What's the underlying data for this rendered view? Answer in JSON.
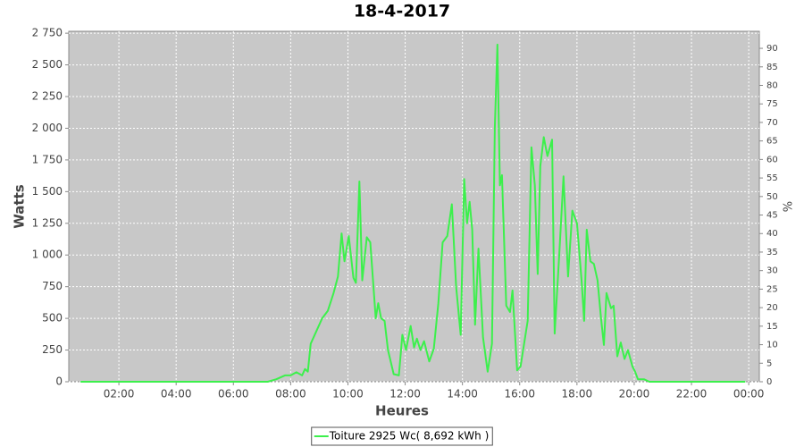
{
  "chart_data": {
    "type": "line",
    "title": "18-4-2017",
    "x_label": "Heures",
    "y_label": "Watts",
    "y2_label": "%",
    "x": [
      0.66,
      7.2,
      7.5,
      7.8,
      8.0,
      8.2,
      8.4,
      8.5,
      8.6,
      8.7,
      8.9,
      9.1,
      9.3,
      9.5,
      9.65,
      9.78,
      9.88,
      10.03,
      10.19,
      10.28,
      10.4,
      10.5,
      10.66,
      10.78,
      10.97,
      11.06,
      11.16,
      11.28,
      11.4,
      11.6,
      11.78,
      11.9,
      12.03,
      12.19,
      12.31,
      12.41,
      12.53,
      12.66,
      12.84,
      13.0,
      13.16,
      13.31,
      13.47,
      13.63,
      13.78,
      13.94,
      14.06,
      14.16,
      14.25,
      14.34,
      14.44,
      14.56,
      14.72,
      14.88,
      15.03,
      15.13,
      15.22,
      15.31,
      15.38,
      15.53,
      15.66,
      15.75,
      15.91,
      16.03,
      16.19,
      16.28,
      16.41,
      16.53,
      16.63,
      16.72,
      16.84,
      16.97,
      17.13,
      17.22,
      17.38,
      17.53,
      17.69,
      17.84,
      18.0,
      18.16,
      18.25,
      18.34,
      18.47,
      18.59,
      18.72,
      18.84,
      18.94,
      19.03,
      19.19,
      19.28,
      19.41,
      19.53,
      19.66,
      19.78,
      19.94,
      20.03,
      20.13,
      20.34,
      20.53,
      23.88
    ],
    "series": [
      {
        "name": "Toiture 2925 Wc( 8,692 kWh )",
        "color": "#3cf04c",
        "values": [
          0,
          0,
          20,
          50,
          50,
          75,
          50,
          100,
          80,
          300,
          400,
          500,
          560,
          700,
          830,
          1170,
          950,
          1150,
          820,
          780,
          1580,
          800,
          1140,
          1100,
          500,
          620,
          500,
          480,
          250,
          60,
          50,
          370,
          250,
          440,
          270,
          340,
          250,
          320,
          160,
          260,
          620,
          1100,
          1150,
          1400,
          750,
          370,
          1600,
          1250,
          1420,
          1200,
          450,
          1050,
          350,
          80,
          300,
          2000,
          2660,
          1550,
          1630,
          600,
          550,
          720,
          90,
          120,
          350,
          480,
          1850,
          1550,
          850,
          1700,
          1930,
          1780,
          1910,
          380,
          1000,
          1620,
          830,
          1350,
          1250,
          800,
          480,
          1200,
          950,
          930,
          800,
          500,
          290,
          700,
          580,
          600,
          200,
          310,
          180,
          250,
          120,
          80,
          20,
          20,
          0,
          0
        ]
      }
    ],
    "xlim": [
      0.25,
      24.37
    ],
    "xticks": [
      {
        "value": 2,
        "label": "02:00"
      },
      {
        "value": 4,
        "label": "04:00"
      },
      {
        "value": 6,
        "label": "06:00"
      },
      {
        "value": 8,
        "label": "08:00"
      },
      {
        "value": 10,
        "label": "10:00"
      },
      {
        "value": 12,
        "label": "12:00"
      },
      {
        "value": 14,
        "label": "14:00"
      },
      {
        "value": 16,
        "label": "16:00"
      },
      {
        "value": 18,
        "label": "18:00"
      },
      {
        "value": 20,
        "label": "20:00"
      },
      {
        "value": 22,
        "label": "22:00"
      },
      {
        "value": 24,
        "label": "00:00"
      }
    ],
    "ylim": [
      0,
      2765
    ],
    "yticks": [
      0,
      250,
      500,
      750,
      {
        "value": 1000,
        "label": "1 000"
      },
      {
        "value": 1250,
        "label": "1 250"
      },
      {
        "value": 1500,
        "label": "1 500"
      },
      {
        "value": 1750,
        "label": "1 750"
      },
      {
        "value": 2000,
        "label": "2 000"
      },
      {
        "value": 2250,
        "label": "2 250"
      },
      {
        "value": 2500,
        "label": "2 500"
      },
      {
        "value": 2750,
        "label": "2 750"
      }
    ],
    "y2lim": [
      0,
      94.6
    ],
    "y2ticks": [
      0,
      5,
      10,
      15,
      20,
      25,
      30,
      35,
      40,
      45,
      50,
      55,
      60,
      65,
      70,
      75,
      80,
      85,
      90
    ],
    "grid": true,
    "legend": "bottom"
  }
}
